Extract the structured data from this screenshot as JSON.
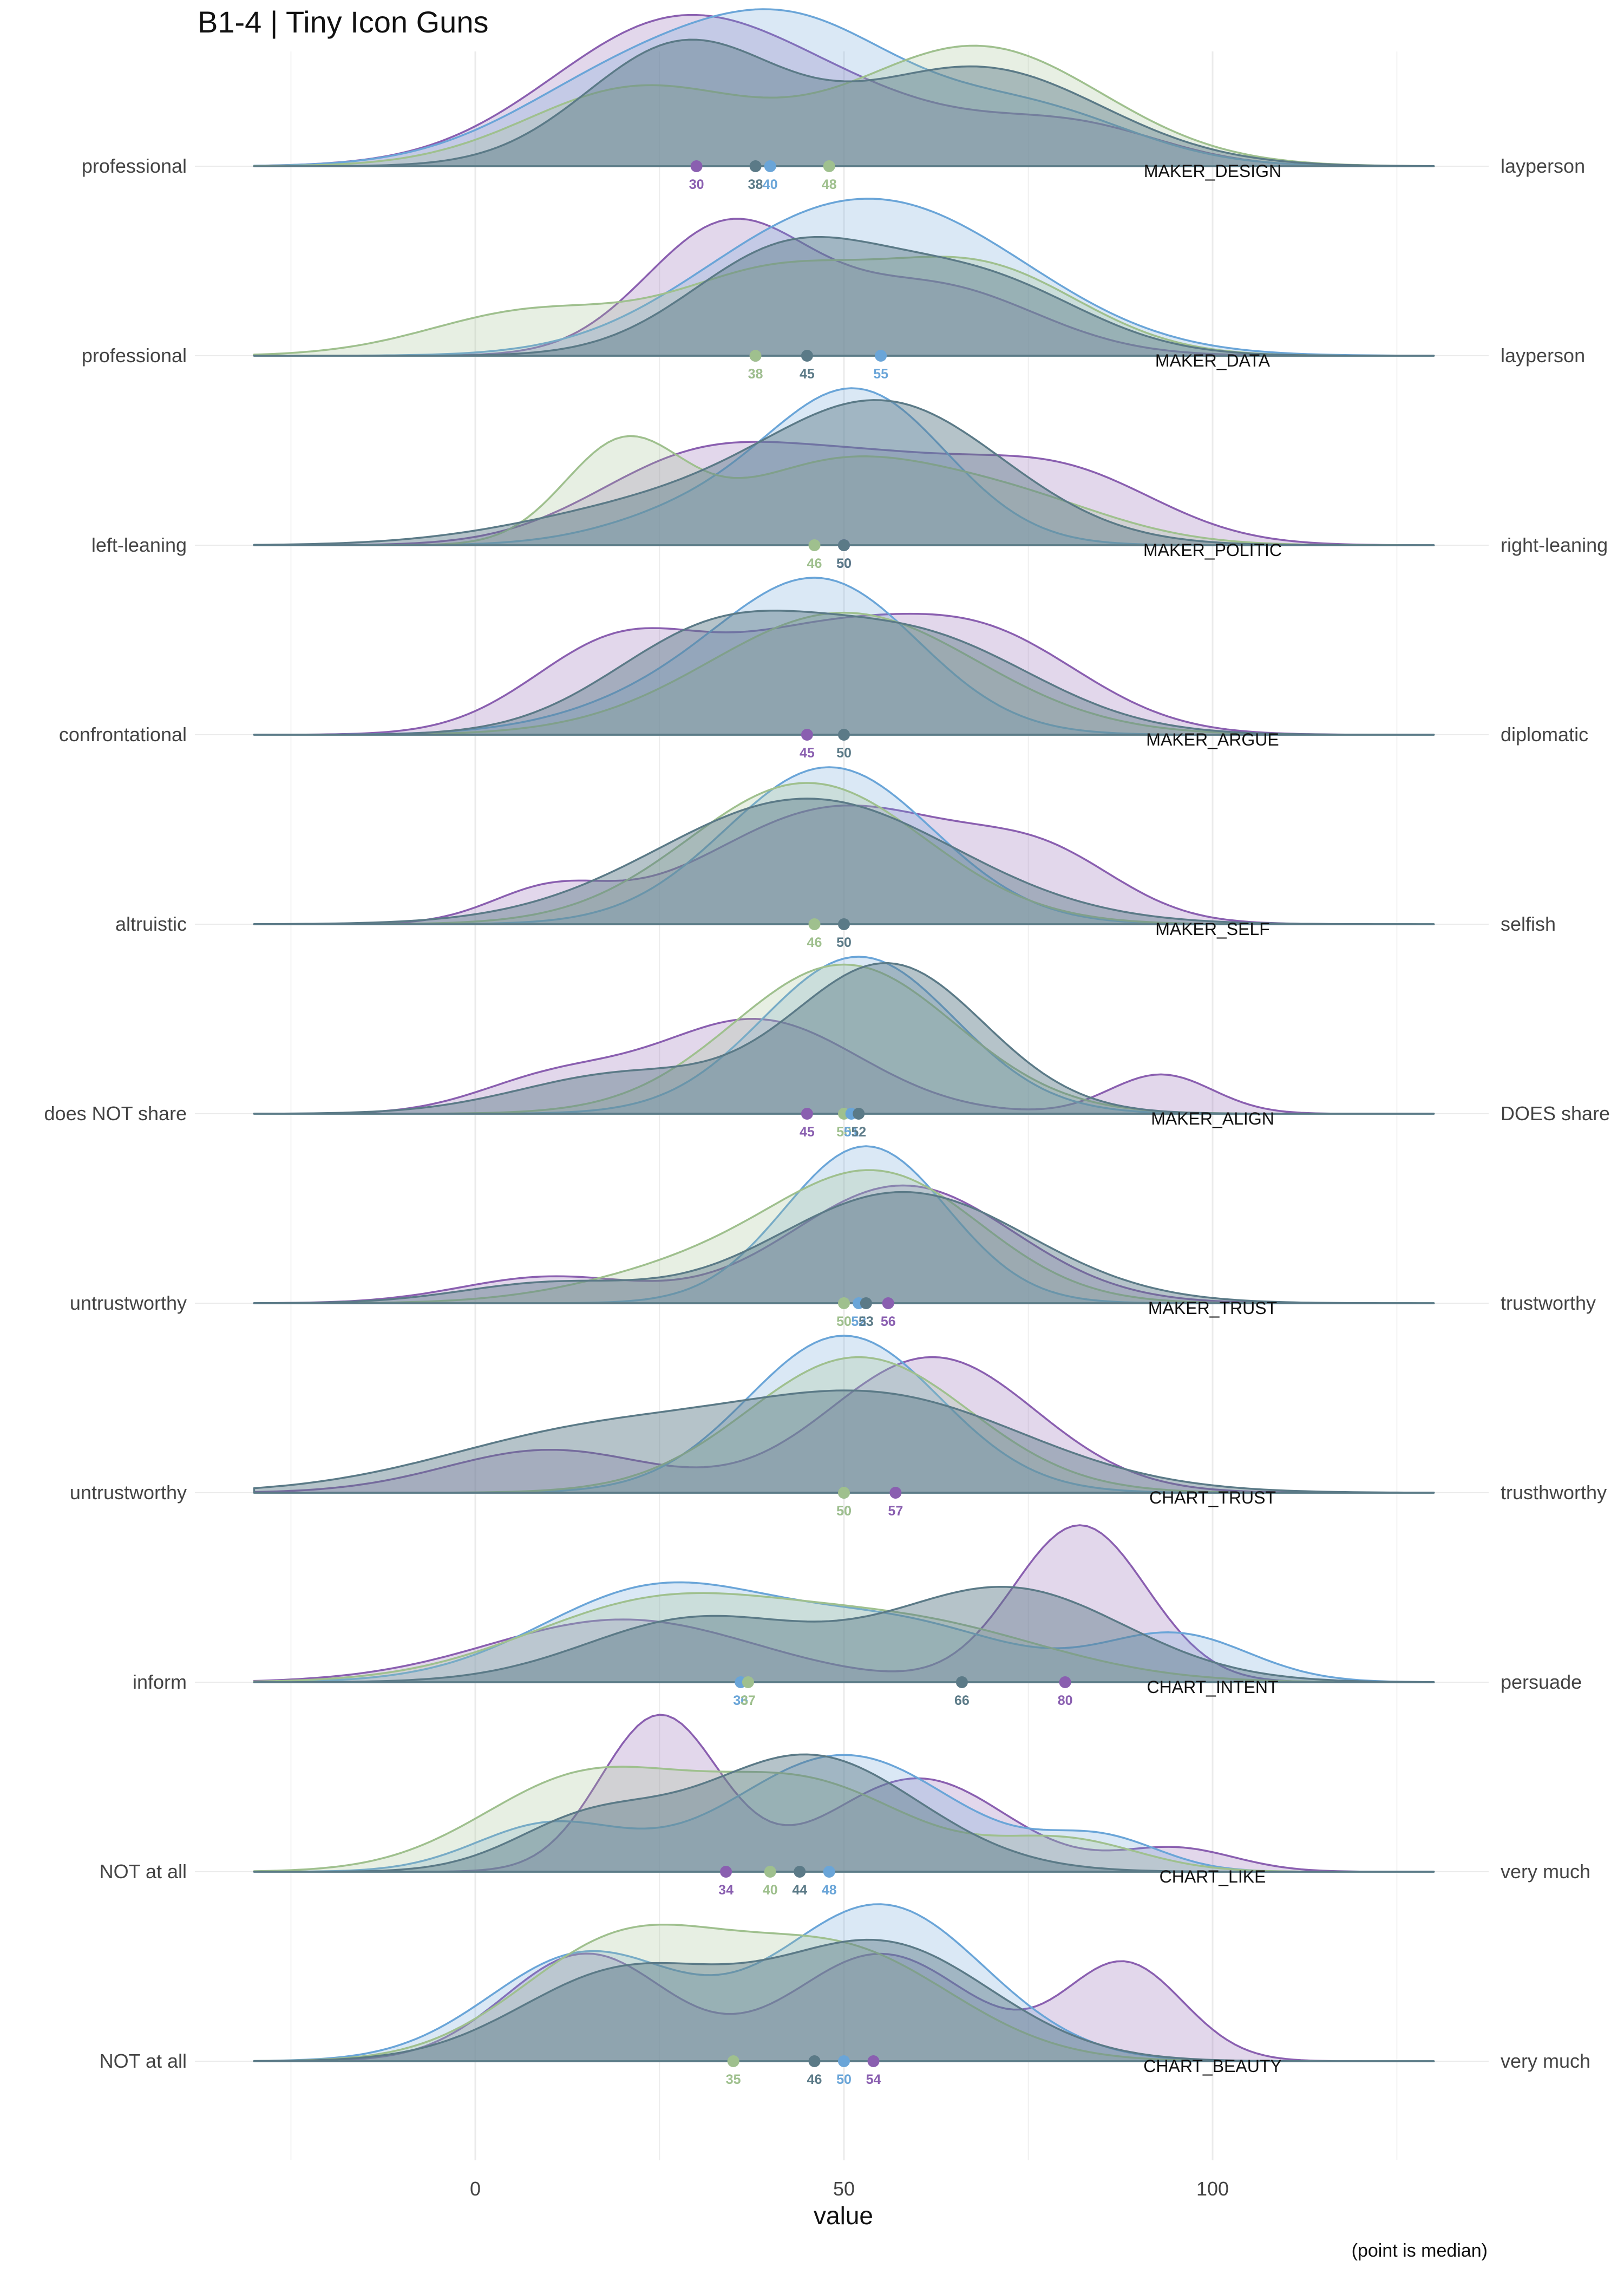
{
  "chart_data": {
    "type": "ridgeline",
    "title": "B1-4 | Tiny Icon Guns",
    "xlabel": "value",
    "caption": "(point is median)",
    "x_ticks": [
      0,
      50,
      100
    ],
    "xlim": [
      -30,
      130
    ],
    "grid": true,
    "series": [
      {
        "name": "purple",
        "color": "#8a5fb0"
      },
      {
        "name": "blue",
        "color": "#6aa5d8"
      },
      {
        "name": "green",
        "color": "#9fc08e"
      },
      {
        "name": "slate",
        "color": "#5b7a87"
      }
    ],
    "rows": [
      {
        "category": "MAKER_DESIGN",
        "left": "professional",
        "right": "layperson",
        "medians": {
          "purple": 30,
          "slate": 38,
          "blue": 40,
          "green": 48
        },
        "peaks": {
          "purple": [
            [
              27,
              1.0,
              17
            ],
            [
              55,
              0.3,
              16
            ],
            [
              82,
              0.25,
              12
            ]
          ],
          "blue": [
            [
              22,
              0.65,
              16
            ],
            [
              45,
              0.8,
              14
            ],
            [
              75,
              0.4,
              14
            ]
          ],
          "green": [
            [
              22,
              0.55,
              15
            ],
            [
              68,
              0.85,
              17
            ]
          ],
          "slate": [
            [
              28,
              0.85,
              13
            ],
            [
              68,
              0.7,
              17
            ]
          ]
        }
      },
      {
        "category": "MAKER_DATA",
        "left": "professional",
        "right": "layperson",
        "medians": {
          "purple": 38,
          "green": 38,
          "slate": 45,
          "blue": 55
        },
        "peaks": {
          "purple": [
            [
              34,
              1.0,
              11
            ],
            [
              62,
              0.55,
              14
            ]
          ],
          "blue": [
            [
              40,
              0.5,
              16
            ],
            [
              60,
              0.95,
              18
            ]
          ],
          "green": [
            [
              8,
              0.35,
              14
            ],
            [
              40,
              0.6,
              13
            ],
            [
              68,
              0.7,
              14
            ]
          ],
          "slate": [
            [
              42,
              0.8,
              13
            ],
            [
              68,
              0.6,
              14
            ]
          ]
        }
      },
      {
        "category": "MAKER_POLITIC",
        "left": "left-leaning",
        "right": "right-leaning",
        "medians": {
          "green": 46,
          "blue": 50,
          "purple": 50,
          "slate": 50
        },
        "peaks": {
          "purple": [
            [
              30,
              0.55,
              14
            ],
            [
              55,
              0.45,
              14
            ],
            [
              80,
              0.45,
              13
            ]
          ],
          "blue": [
            [
              52,
              1.0,
              12
            ],
            [
              30,
              0.2,
              12
            ]
          ],
          "green": [
            [
              20,
              0.65,
              8
            ],
            [
              48,
              0.5,
              14
            ],
            [
              72,
              0.3,
              14
            ]
          ],
          "slate": [
            [
              25,
              0.25,
              18
            ],
            [
              56,
              0.9,
              16
            ]
          ]
        }
      },
      {
        "category": "MAKER_ARGUE",
        "left": "confrontational",
        "right": "diplomatic",
        "medians": {
          "purple": 45,
          "slate": 50
        },
        "peaks": {
          "purple": [
            [
              20,
              0.7,
              12
            ],
            [
              45,
              0.55,
              12
            ],
            [
              68,
              0.75,
              14
            ]
          ],
          "blue": [
            [
              48,
              1.0,
              13
            ],
            [
              30,
              0.3,
              15
            ]
          ],
          "green": [
            [
              50,
              0.9,
              18
            ]
          ],
          "slate": [
            [
              32,
              0.7,
              14
            ],
            [
              60,
              0.7,
              16
            ]
          ]
        }
      },
      {
        "category": "MAKER_SELF",
        "left": "altruistic",
        "right": "selfish",
        "medians": {
          "green": 46,
          "slate": 50
        },
        "peaks": {
          "purple": [
            [
              10,
              0.2,
              8
            ],
            [
              50,
              0.75,
              18
            ],
            [
              78,
              0.3,
              10
            ]
          ],
          "blue": [
            [
              48,
              1.0,
              14
            ]
          ],
          "green": [
            [
              45,
              0.9,
              16
            ]
          ],
          "slate": [
            [
              45,
              0.8,
              20
            ]
          ]
        }
      },
      {
        "category": "MAKER_ALIGN",
        "left": "does NOT share",
        "right": "DOES share",
        "medians": {
          "purple": 45,
          "green": 50,
          "blue": 51,
          "slate": 52
        },
        "peaks": {
          "purple": [
            [
              10,
              0.2,
              10
            ],
            [
              38,
              0.6,
              14
            ],
            [
              93,
              0.25,
              7
            ]
          ],
          "blue": [
            [
              52,
              1.0,
              13
            ]
          ],
          "green": [
            [
              50,
              0.95,
              15
            ]
          ],
          "slate": [
            [
              20,
              0.25,
              14
            ],
            [
              56,
              0.95,
              13
            ]
          ]
        }
      },
      {
        "category": "MAKER_TRUST",
        "left": "untrustworthy",
        "right": "trustworthy",
        "medians": {
          "green": 50,
          "blue": 52,
          "slate": 53,
          "purple": 56
        },
        "peaks": {
          "purple": [
            [
              10,
              0.2,
              12
            ],
            [
              58,
              0.9,
              15
            ]
          ],
          "blue": [
            [
              53,
              1.2,
              11
            ]
          ],
          "green": [
            [
              30,
              0.25,
              15
            ],
            [
              55,
              0.95,
              14
            ]
          ],
          "slate": [
            [
              10,
              0.15,
              12
            ],
            [
              58,
              0.85,
              17
            ]
          ]
        }
      },
      {
        "category": "CHART_TRUST",
        "left": "untrustworthy",
        "right": "trusthworthy",
        "medians": {
          "slate": 50,
          "green": 50,
          "purple": 57
        },
        "peaks": {
          "purple": [
            [
              10,
              0.3,
              14
            ],
            [
              62,
              0.95,
              14
            ]
          ],
          "blue": [
            [
              50,
              1.1,
              13
            ]
          ],
          "green": [
            [
              52,
              0.95,
              15
            ]
          ],
          "slate": [
            [
              15,
              0.4,
              20
            ],
            [
              55,
              0.65,
              20
            ]
          ]
        }
      },
      {
        "category": "CHART_INTENT",
        "left": "inform",
        "right": "persuade",
        "medians": {
          "blue": 36,
          "green": 37,
          "slate": 66,
          "purple": 80
        },
        "peaks": {
          "purple": [
            [
              20,
              0.4,
              18
            ],
            [
              82,
              1.0,
              9
            ]
          ],
          "blue": [
            [
              25,
              0.6,
              16
            ],
            [
              58,
              0.35,
              15
            ],
            [
              95,
              0.3,
              10
            ]
          ],
          "green": [
            [
              25,
              0.5,
              18
            ],
            [
              60,
              0.35,
              18
            ]
          ],
          "slate": [
            [
              30,
              0.4,
              15
            ],
            [
              72,
              0.6,
              16
            ]
          ]
        }
      },
      {
        "category": "CHART_LIKE",
        "left": "NOT at all",
        "right": "very much",
        "medians": {
          "purple": 34,
          "green": 40,
          "slate": 44,
          "blue": 48
        },
        "peaks": {
          "purple": [
            [
              25,
              1.0,
              8
            ],
            [
              60,
              0.6,
              12
            ],
            [
              95,
              0.15,
              8
            ]
          ],
          "blue": [
            [
              10,
              0.3,
              10
            ],
            [
              50,
              0.75,
              15
            ],
            [
              85,
              0.2,
              8
            ]
          ],
          "green": [
            [
              15,
              0.6,
              14
            ],
            [
              45,
              0.55,
              14
            ],
            [
              80,
              0.2,
              10
            ]
          ],
          "slate": [
            [
              15,
              0.3,
              10
            ],
            [
              45,
              0.75,
              15
            ]
          ]
        }
      },
      {
        "category": "CHART_BEAUTY",
        "left": "NOT at all",
        "right": "very much",
        "medians": {
          "green": 35,
          "slate": 46,
          "blue": 50,
          "purple": 54
        },
        "peaks": {
          "purple": [
            [
              15,
              0.55,
              11
            ],
            [
              55,
              0.55,
              12
            ],
            [
              88,
              0.5,
              8
            ]
          ],
          "blue": [
            [
              15,
              0.55,
              13
            ],
            [
              55,
              0.8,
              14
            ]
          ],
          "green": [
            [
              20,
              0.6,
              14
            ],
            [
              50,
              0.55,
              15
            ]
          ],
          "slate": [
            [
              20,
              0.45,
              14
            ],
            [
              55,
              0.6,
              15
            ]
          ]
        }
      }
    ]
  }
}
